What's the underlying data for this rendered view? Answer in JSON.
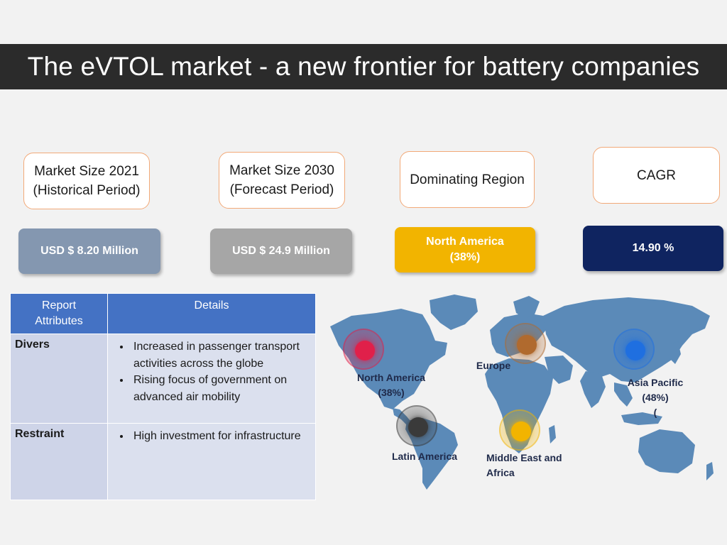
{
  "title": "The eVTOL market - a new frontier for battery companies",
  "metrics": [
    {
      "label": "Market Size 2021\n(Historical Period)",
      "value": "USD $ 8.20 Million",
      "color": "#8497b0"
    },
    {
      "label": "Market Size 2030\n(Forecast Period)",
      "value": "USD $ 24.9 Million",
      "color": "#a6a6a6"
    },
    {
      "label": "Dominating Region",
      "value": "North America\n(38%)",
      "color": "#f2b400"
    },
    {
      "label": "CAGR",
      "value": "14.90 %",
      "color": "#0f2460"
    }
  ],
  "table": {
    "headers": [
      "Report\nAttributes",
      "Details"
    ],
    "rows": [
      {
        "attribute": "Divers",
        "details": [
          "Increased in passenger transport activities across the globe",
          "Rising focus of government on advanced air mobility"
        ]
      },
      {
        "attribute": "Restraint",
        "details": [
          "High investment for infrastructure"
        ]
      }
    ]
  },
  "map": {
    "regions": [
      {
        "name": "North America\n(38%)",
        "color": "#e0204a"
      },
      {
        "name": "Europe",
        "color": "#b06a2e"
      },
      {
        "name": "Asia Pacific\n(48%)\n(",
        "color": "#1f6fe0"
      },
      {
        "name": "Latin America",
        "color": "#3a3a3a"
      },
      {
        "name": "Middle East and\nAfrica",
        "color": "#f2b400"
      }
    ],
    "land_color": "#5b8ab8"
  }
}
